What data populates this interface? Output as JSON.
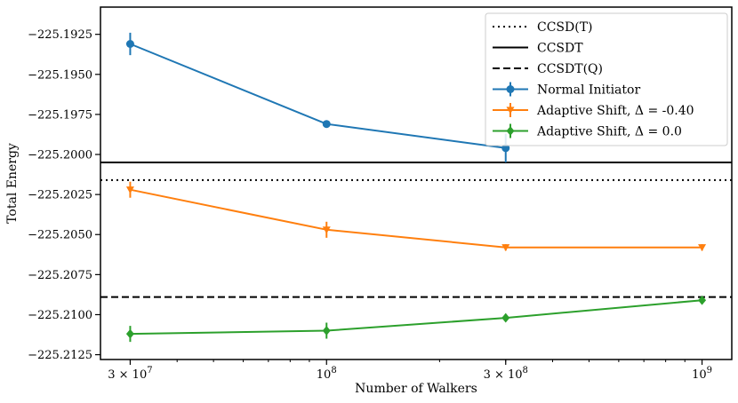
{
  "chart_data": {
    "type": "line",
    "title": "",
    "xlabel": "Number of Walkers",
    "ylabel": "Total Energy",
    "xscale": "log",
    "xlim": [
      25000000,
      1200000000
    ],
    "ylim": [
      -225.2128,
      -225.1908
    ],
    "grid": false,
    "legend_position": "top-right",
    "x_ticks": [
      {
        "value": 30000000,
        "label": "3 × 10",
        "exp": "7"
      },
      {
        "value": 100000000,
        "label": "10",
        "exp": "8"
      },
      {
        "value": 300000000,
        "label": "3 × 10",
        "exp": "8"
      },
      {
        "value": 1000000000,
        "label": "10",
        "exp": "9"
      }
    ],
    "y_ticks": [
      {
        "value": -225.1925,
        "label": "−225.1925"
      },
      {
        "value": -225.195,
        "label": "−225.1950"
      },
      {
        "value": -225.1975,
        "label": "−225.1975"
      },
      {
        "value": -225.2,
        "label": "−225.2000"
      },
      {
        "value": -225.2025,
        "label": "−225.2025"
      },
      {
        "value": -225.205,
        "label": "−225.2050"
      },
      {
        "value": -225.2075,
        "label": "−225.2075"
      },
      {
        "value": -225.21,
        "label": "−225.2100"
      },
      {
        "value": -225.2125,
        "label": "−225.2125"
      }
    ],
    "reference_lines": [
      {
        "name": "CCSD(T)",
        "value": -225.2016,
        "style": "dotted",
        "color": "#000000"
      },
      {
        "name": "CCSDT",
        "value": -225.2005,
        "style": "solid",
        "color": "#000000"
      },
      {
        "name": "CCSDT(Q)",
        "value": -225.2089,
        "style": "dashed",
        "color": "#000000"
      }
    ],
    "series": [
      {
        "name": "Normal Initiator",
        "color": "#1f77b4",
        "marker": "circle",
        "x": [
          30000000,
          100000000,
          300000000
        ],
        "y": [
          -225.1931,
          -225.1981,
          -225.1996
        ],
        "yerr": [
          0.0007,
          0.0002,
          0.0009
        ]
      },
      {
        "name": "Adaptive Shift, Δ = -0.40",
        "color": "#ff7f0e",
        "marker": "triangle-down",
        "x": [
          30000000,
          100000000,
          300000000,
          1000000000
        ],
        "y": [
          -225.2022,
          -225.2047,
          -225.2058,
          -225.2058
        ],
        "yerr": [
          0.0005,
          0.0005,
          0.0002,
          0.0002
        ]
      },
      {
        "name": "Adaptive Shift, Δ =  0.0",
        "color": "#2ca02c",
        "marker": "diamond",
        "x": [
          30000000,
          100000000,
          300000000,
          1000000000
        ],
        "y": [
          -225.2112,
          -225.211,
          -225.2102,
          -225.2091
        ],
        "yerr": [
          0.0005,
          0.0005,
          0.0002,
          0.0002
        ]
      }
    ]
  }
}
